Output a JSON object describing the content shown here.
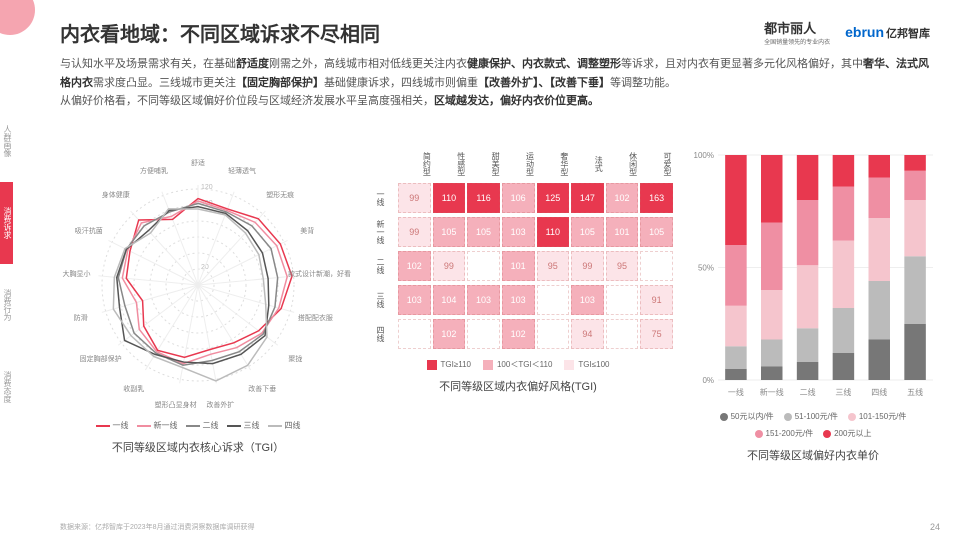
{
  "title": "内衣看地域：不同区域诉求不尽相同",
  "logos": {
    "brand1": "都市丽人",
    "brand1_sub": "全国销量领先的专业内衣",
    "brand2": "ebrun",
    "brand2_cn": "亿邦智库"
  },
  "sidebar": {
    "items": [
      "人群画像",
      "消费诉求",
      "消费行为",
      "消费态度"
    ],
    "active": 1
  },
  "body_html": "与认知水平及场景需求有关，在基础<b>舒适度</b>刚需之外，高线城市相对低线更关注内衣<b>健康保护、内衣款式、调整塑形</b>等诉求，且对内衣有更显著多元化风格偏好，其中<b>奢华、法式风格内衣</b>需求度凸显。三线城市更关注<b>【固定胸部保护】</b>基础健康诉求，四线城市则偏重<b>【改善外扩】、【改善下垂】</b>等调整功能。<br>从偏好价格看，不同等级区域偏好价位段与区域经济发展水平呈高度强相关，<b>区域越发达，偏好内衣价位更高。</b>",
  "radar": {
    "title": "不同等级区域内衣核心诉求（TGI）",
    "rings": [
      20,
      40,
      60,
      80,
      100,
      120
    ],
    "ring_labels": [
      "20",
      "",
      "",
      "",
      "100",
      "120"
    ],
    "axes": [
      "舒适",
      "轻薄透气",
      "塑形无痕",
      "美背",
      "款式设计新潮，好看",
      "搭配配衣服",
      "聚拢",
      "改善下垂",
      "改善外扩",
      "塑形凸显身材",
      "收副乳",
      "固定胸部保护",
      "防滑",
      "大胸显小",
      "吸汗抗菌",
      "身体健康",
      "方便哺乳"
    ],
    "series": [
      {
        "name": "一线",
        "color": "#e8384f",
        "values": [
          108,
          102,
          112,
          115,
          118,
          108,
          95,
          85,
          82,
          92,
          96,
          85,
          72,
          90,
          95,
          110,
          88
        ]
      },
      {
        "name": "新一线",
        "color": "#f08da0",
        "values": [
          105,
          100,
          106,
          110,
          112,
          105,
          100,
          92,
          88,
          100,
          98,
          92,
          80,
          95,
          98,
          105,
          92
        ]
      },
      {
        "name": "二线",
        "color": "#888888",
        "values": [
          102,
          98,
          100,
          102,
          100,
          100,
          102,
          98,
          96,
          102,
          100,
          100,
          95,
          100,
          100,
          100,
          98
        ]
      },
      {
        "name": "三线",
        "color": "#555555",
        "values": [
          98,
          96,
          92,
          90,
          88,
          92,
          105,
          102,
          100,
          98,
          102,
          115,
          102,
          102,
          100,
          92,
          100
        ]
      },
      {
        "name": "四线",
        "color": "#bbbbbb",
        "values": [
          95,
          94,
          88,
          85,
          82,
          88,
          108,
          118,
          122,
          105,
          105,
          105,
          110,
          105,
          102,
          88,
          102
        ]
      }
    ]
  },
  "heatmap": {
    "title": "不同等级区域内衣偏好风格(TGI)",
    "cols": [
      "简约型",
      "性感型",
      "甜美型",
      "运动型",
      "奢华型",
      "法式",
      "休闲型",
      "可爱型"
    ],
    "rows": [
      "一线",
      "新一线",
      "二线",
      "三线",
      "四线"
    ],
    "data": [
      [
        99,
        110,
        116,
        106,
        125,
        147,
        102,
        163
      ],
      [
        99,
        105,
        105,
        103,
        110,
        105,
        101,
        105
      ],
      [
        102,
        99,
        null,
        101,
        95,
        99,
        95,
        null
      ],
      [
        103,
        104,
        103,
        103,
        null,
        103,
        null,
        91
      ],
      [
        null,
        102,
        null,
        102,
        null,
        94,
        null,
        75
      ]
    ],
    "colors": {
      "high": "#e8384f",
      "mid": "#f5b0bb",
      "low": "#fce4e8",
      "empty": "#ffffff"
    },
    "legend": [
      {
        "label": "TGI≥110",
        "color": "#e8384f"
      },
      {
        "label": "100＜TGI＜110",
        "color": "#f5b0bb"
      },
      {
        "label": "TGI≤100",
        "color": "#fce4e8"
      }
    ]
  },
  "stacked": {
    "title": "不同等级区域偏好内衣单价",
    "categories": [
      "一线",
      "新一线",
      "二线",
      "三线",
      "四线",
      "五线"
    ],
    "y_ticks": [
      "0%",
      "50%",
      "100%"
    ],
    "series": [
      {
        "name": "50元以内/件",
        "color": "#777777"
      },
      {
        "name": "51-100元/件",
        "color": "#bbbbbb"
      },
      {
        "name": "101-150元/件",
        "color": "#f5c5cd"
      },
      {
        "name": "151-200元/件",
        "color": "#ef8fa3"
      },
      {
        "name": "200元以上",
        "color": "#e8384f"
      }
    ],
    "data": [
      [
        5,
        10,
        18,
        27,
        40
      ],
      [
        6,
        12,
        22,
        30,
        30
      ],
      [
        8,
        15,
        28,
        29,
        20
      ],
      [
        12,
        20,
        30,
        24,
        14
      ],
      [
        18,
        26,
        28,
        18,
        10
      ],
      [
        25,
        30,
        25,
        13,
        7
      ]
    ]
  },
  "footer": "数据来源：亿邦智库于2023年8月通过消费洞察数据库调研获得",
  "page": "24"
}
